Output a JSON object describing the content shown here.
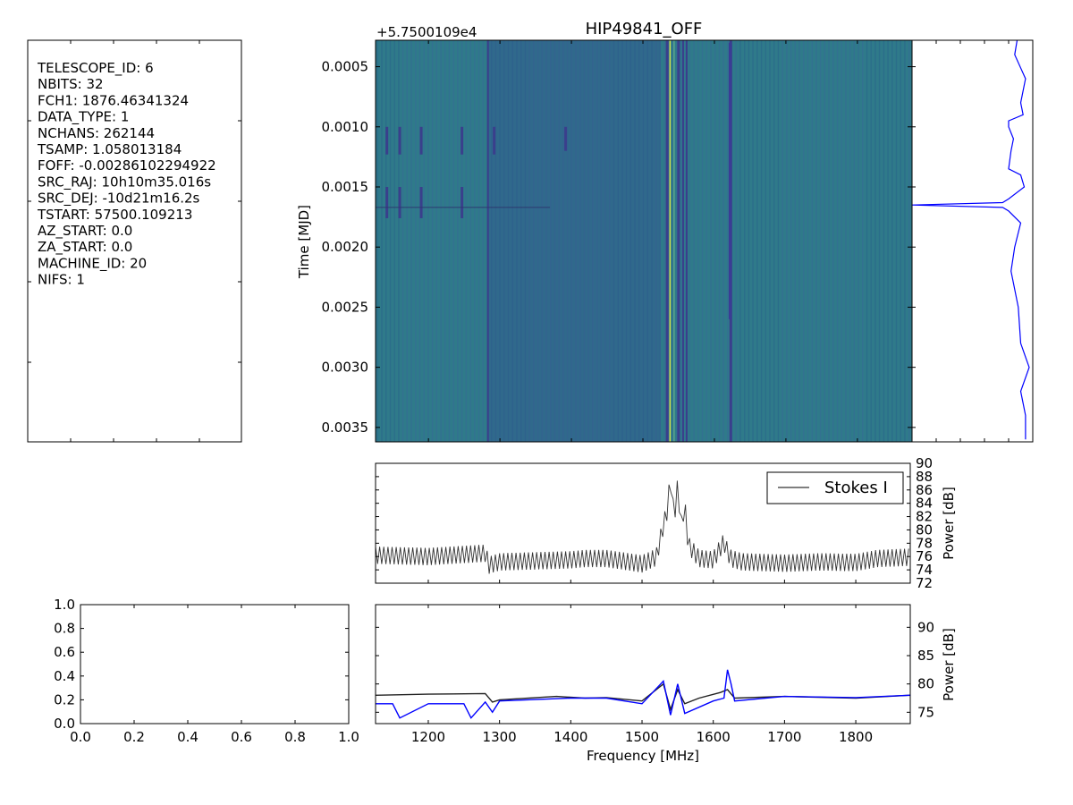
{
  "header": {
    "title": "HIP49841_OFF",
    "offset_label": "+5.7500109e4"
  },
  "header_panel": {
    "lines": [
      "TELESCOPE_ID:  6",
      "NBITS:  32",
      "FCH1:  1876.46341324",
      "DATA_TYPE:  1",
      "NCHANS:  262144",
      "TSAMP:  1.058013184",
      "FOFF:  -0.00286102294922",
      "SRC_RAJ:  10h10m35.016s",
      "SRC_DEJ:  -10d21m16.2s",
      "TSTART:  57500.109213",
      "AZ_START:  0.0",
      "ZA_START:  0.0",
      "MACHINE_ID:  20",
      "NIFS:  1"
    ]
  },
  "colors": {
    "waterfall_base": "#2f7a8a",
    "waterfall_dark": "#3a3f8c",
    "waterfall_bright": "#d6e24a",
    "stokes_line": "#333333",
    "bandpass_line": "#0000ff"
  },
  "chart_data": [
    {
      "type": "heatmap",
      "title": "HIP49841_OFF",
      "ylabel": "Time [MJD]",
      "y_offset_label": "+5.7500109e4",
      "ylim": [
        0.00362,
        0.00028
      ],
      "yticks": [
        0.0005,
        0.001,
        0.0015,
        0.002,
        0.0025,
        0.003,
        0.0035
      ],
      "ytick_labels": [
        "0.0005",
        "0.0010",
        "0.0015",
        "0.0020",
        "0.0025",
        "0.0030",
        "0.0035"
      ],
      "xlim": [
        1126,
        1876.46
      ],
      "notes": "Waterfall spectrogram, mostly uniform teal with vertical dark RFI stripes near 1280, 1530-1560 and 1620 MHz and a bright narrow line near 1540 MHz."
    },
    {
      "type": "line",
      "series": [
        {
          "x": [
            0.00028,
            0.0004,
            0.0006,
            0.0008,
            0.0009,
            0.00095,
            0.001,
            0.00105,
            0.0011,
            0.0012,
            0.00135,
            0.0014,
            0.0015,
            0.0016,
            0.00163,
            0.00165,
            0.00167,
            0.0017,
            0.0018,
            0.002,
            0.0022,
            0.0025,
            0.0028,
            0.003,
            0.0032,
            0.0034,
            0.0036
          ],
          "values": [
            0.87,
            0.85,
            0.94,
            0.9,
            0.92,
            0.8,
            0.8,
            0.82,
            0.84,
            0.82,
            0.8,
            0.9,
            0.93,
            0.8,
            0.75,
            0.0,
            0.75,
            0.8,
            0.9,
            0.85,
            0.82,
            0.88,
            0.9,
            0.97,
            0.9,
            0.94,
            0.94
          ]
        }
      ],
      "notes": "Integrated time-series side panel, normalized power vs time, sharp dip near 0.00167"
    },
    {
      "type": "line",
      "ylabel": "Power [dB]",
      "ylim": [
        72,
        90
      ],
      "yticks": [
        72,
        74,
        76,
        78,
        80,
        82,
        84,
        86,
        88,
        90
      ],
      "xlim": [
        1126,
        1876.46
      ],
      "legend": "top-right",
      "series": [
        {
          "name": "Stokes I",
          "x": [
            1126,
            1200,
            1280,
            1285,
            1300,
            1400,
            1420,
            1450,
            1500,
            1520,
            1530,
            1535,
            1540,
            1545,
            1550,
            1555,
            1560,
            1565,
            1580,
            1600,
            1615,
            1620,
            1625,
            1640,
            1700,
            1750,
            1800,
            1830,
            1876.46
          ],
          "values": [
            77.5,
            77.3,
            77.8,
            76.0,
            76.5,
            76.8,
            77.0,
            77.0,
            76.2,
            77.2,
            82.0,
            84.0,
            89.0,
            83.0,
            88.0,
            82.0,
            85.0,
            79.0,
            77.0,
            76.8,
            79.5,
            78.0,
            77.0,
            76.5,
            76.3,
            76.5,
            76.4,
            77.0,
            77.2
          ]
        }
      ],
      "notes": "Spectrum with comb-like fluctuation between ~75 and ~78 dB"
    },
    {
      "type": "line",
      "xlabel": "Frequency [MHz]",
      "ylabel": "Power [dB]",
      "ylim": [
        73,
        94
      ],
      "yticks": [
        75,
        80,
        85,
        90
      ],
      "xlim": [
        1126,
        1876.46
      ],
      "xticks": [
        1200,
        1300,
        1400,
        1500,
        1600,
        1700,
        1800
      ],
      "series": [
        {
          "x": [
            1126,
            1200,
            1280,
            1290,
            1300,
            1380,
            1420,
            1450,
            1500,
            1530,
            1540,
            1550,
            1560,
            1580,
            1610,
            1620,
            1630,
            1700,
            1800,
            1876.46
          ],
          "values": [
            78.0,
            78.2,
            78.3,
            76.8,
            77.2,
            77.8,
            77.5,
            77.6,
            77.0,
            80.0,
            75.5,
            79.0,
            76.5,
            77.5,
            78.5,
            79.0,
            77.5,
            77.8,
            77.5,
            78.0
          ]
        },
        {
          "x": [
            1126,
            1150,
            1160,
            1200,
            1250,
            1260,
            1280,
            1290,
            1300,
            1400,
            1450,
            1500,
            1530,
            1540,
            1550,
            1560,
            1600,
            1615,
            1620,
            1625,
            1630,
            1700,
            1800,
            1876.46
          ],
          "values": [
            76.5,
            76.5,
            74.0,
            76.5,
            76.5,
            74.0,
            76.8,
            75.0,
            77.0,
            77.5,
            77.5,
            76.5,
            80.5,
            74.5,
            80.0,
            74.8,
            77.0,
            77.5,
            82.5,
            80.0,
            77.0,
            77.8,
            77.6,
            78.0
          ]
        }
      ]
    },
    {
      "type": "scatter",
      "xlim": [
        0,
        1
      ],
      "ylim": [
        0,
        1
      ],
      "xticks": [
        0.0,
        0.2,
        0.4,
        0.6,
        0.8,
        1.0
      ],
      "xtick_labels": [
        "0.0",
        "0.2",
        "0.4",
        "0.6",
        "0.8",
        "1.0"
      ],
      "yticks": [
        0.0,
        0.2,
        0.4,
        0.6,
        0.8,
        1.0
      ],
      "ytick_labels": [
        "0.0",
        "0.2",
        "0.4",
        "0.6",
        "0.8",
        "1.0"
      ],
      "series": []
    }
  ]
}
